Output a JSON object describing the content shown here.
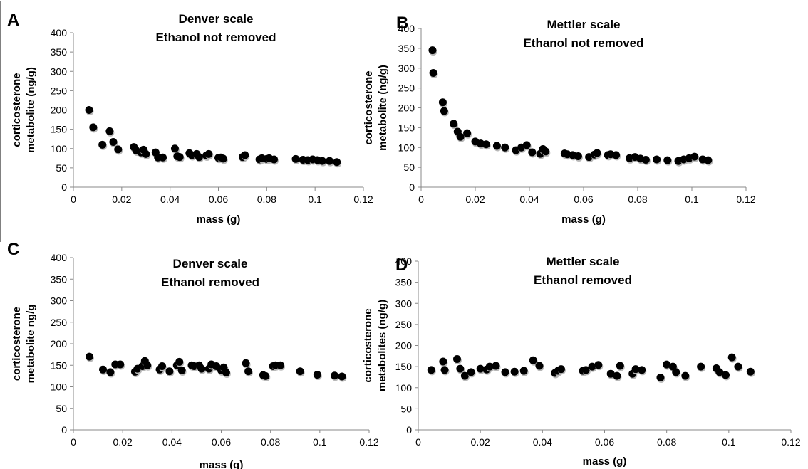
{
  "chart_data": [
    {
      "type": "scatter",
      "panel_label": "A",
      "title": [
        "Denver scale",
        "Ethanol not removed"
      ],
      "xlabel": "mass (g)",
      "ylabel": [
        "corticosterone",
        "metabolite (ng/g)"
      ],
      "xlim": [
        0,
        0.12
      ],
      "ylim": [
        0,
        400
      ],
      "xticks": [
        "0",
        "0.02",
        "0.04",
        "0.06",
        "0.08",
        "0.1",
        "0.12"
      ],
      "yticks": [
        "0",
        "50",
        "100",
        "150",
        "200",
        "250",
        "300",
        "350",
        "400"
      ],
      "grid": false,
      "x": [
        0.0065,
        0.0082,
        0.012,
        0.015,
        0.0165,
        0.0185,
        0.025,
        0.026,
        0.028,
        0.029,
        0.03,
        0.034,
        0.035,
        0.037,
        0.042,
        0.043,
        0.044,
        0.048,
        0.049,
        0.051,
        0.052,
        0.055,
        0.056,
        0.06,
        0.061,
        0.062,
        0.07,
        0.071,
        0.077,
        0.078,
        0.08,
        0.081,
        0.083,
        0.092,
        0.095,
        0.097,
        0.099,
        0.101,
        0.103,
        0.106,
        0.109
      ],
      "y": [
        200,
        155,
        110,
        145,
        117,
        98,
        104,
        95,
        90,
        97,
        86,
        90,
        77,
        77,
        100,
        80,
        78,
        88,
        83,
        86,
        78,
        82,
        86,
        76,
        77,
        74,
        78,
        83,
        72,
        75,
        73,
        75,
        72,
        73,
        71,
        70,
        72,
        70,
        68,
        68,
        65
      ]
    },
    {
      "type": "scatter",
      "panel_label": "B",
      "title": [
        "Mettler scale",
        "Ethanol not removed"
      ],
      "xlabel": "mass (g)",
      "ylabel": [
        "corticosterone",
        "metabolite (ng/g)"
      ],
      "xlim": [
        0,
        0.12
      ],
      "ylim": [
        0,
        400
      ],
      "xticks": [
        "0",
        "0.02",
        "0.04",
        "0.06",
        "0.08",
        "0.1",
        "0.12"
      ],
      "yticks": [
        "0",
        "50",
        "100",
        "150",
        "200",
        "250",
        "300",
        "350",
        "400"
      ],
      "grid": false,
      "x": [
        0.0042,
        0.0045,
        0.008,
        0.0085,
        0.012,
        0.0135,
        0.0145,
        0.017,
        0.02,
        0.022,
        0.024,
        0.028,
        0.031,
        0.035,
        0.037,
        0.039,
        0.041,
        0.044,
        0.045,
        0.046,
        0.053,
        0.054,
        0.056,
        0.058,
        0.062,
        0.064,
        0.065,
        0.069,
        0.07,
        0.072,
        0.077,
        0.079,
        0.081,
        0.083,
        0.087,
        0.091,
        0.095,
        0.097,
        0.099,
        0.101,
        0.104,
        0.106
      ],
      "y": [
        345,
        288,
        214,
        192,
        160,
        140,
        127,
        136,
        115,
        110,
        108,
        104,
        100,
        93,
        100,
        106,
        88,
        84,
        96,
        90,
        85,
        83,
        81,
        78,
        76,
        82,
        86,
        81,
        83,
        81,
        73,
        76,
        72,
        69,
        70,
        68,
        66,
        70,
        73,
        77,
        70,
        68
      ]
    },
    {
      "type": "scatter",
      "panel_label": "C",
      "title": [
        "Denver scale",
        "Ethanol removed"
      ],
      "xlabel": "mass (g)",
      "ylabel": [
        "corticosterone",
        "metabolite ng/g"
      ],
      "xlim": [
        0,
        0.12
      ],
      "ylim": [
        0,
        400
      ],
      "xticks": [
        "0",
        "0.02",
        "0.04",
        "0.06",
        "0.08",
        "0.1",
        "0.12"
      ],
      "yticks": [
        "0",
        "50",
        "100",
        "150",
        "200",
        "250",
        "300",
        "350",
        "400"
      ],
      "grid": false,
      "x": [
        0.0065,
        0.012,
        0.015,
        0.017,
        0.019,
        0.025,
        0.026,
        0.028,
        0.029,
        0.03,
        0.035,
        0.036,
        0.039,
        0.042,
        0.043,
        0.044,
        0.048,
        0.049,
        0.051,
        0.052,
        0.055,
        0.056,
        0.058,
        0.06,
        0.061,
        0.062,
        0.07,
        0.071,
        0.077,
        0.078,
        0.081,
        0.082,
        0.084,
        0.092,
        0.099,
        0.106,
        0.109
      ],
      "y": [
        170,
        140,
        134,
        152,
        152,
        135,
        142,
        148,
        160,
        150,
        140,
        148,
        136,
        150,
        158,
        138,
        150,
        148,
        150,
        142,
        142,
        152,
        148,
        138,
        145,
        133,
        155,
        136,
        127,
        125,
        148,
        150,
        150,
        136,
        128,
        126,
        124
      ]
    },
    {
      "type": "scatter",
      "panel_label": "D",
      "title": [
        "Mettler scale",
        "Ethanol removed"
      ],
      "xlabel": "mass (g)",
      "ylabel": [
        "corticosterone",
        "metabolites (ng/g)"
      ],
      "xlim": [
        0,
        0.12
      ],
      "ylim": [
        0,
        400
      ],
      "xticks": [
        "0",
        "0.02",
        "0.04",
        "0.06",
        "0.08",
        "0.1",
        "0.12"
      ],
      "yticks": [
        "0",
        "50",
        "100",
        "150",
        "200",
        "250",
        "300",
        "350",
        "400"
      ],
      "grid": false,
      "x": [
        0.0042,
        0.008,
        0.0085,
        0.0125,
        0.0135,
        0.015,
        0.017,
        0.02,
        0.022,
        0.023,
        0.025,
        0.028,
        0.031,
        0.034,
        0.037,
        0.039,
        0.044,
        0.045,
        0.046,
        0.053,
        0.054,
        0.056,
        0.058,
        0.062,
        0.064,
        0.065,
        0.069,
        0.07,
        0.072,
        0.078,
        0.08,
        0.082,
        0.083,
        0.086,
        0.091,
        0.096,
        0.097,
        0.099,
        0.101,
        0.103,
        0.107
      ],
      "y": [
        142,
        162,
        142,
        168,
        145,
        128,
        137,
        145,
        143,
        150,
        152,
        137,
        138,
        140,
        165,
        152,
        135,
        140,
        144,
        140,
        142,
        150,
        154,
        133,
        128,
        152,
        133,
        144,
        142,
        124,
        155,
        150,
        137,
        128,
        150,
        146,
        137,
        130,
        172,
        150,
        138
      ]
    }
  ]
}
